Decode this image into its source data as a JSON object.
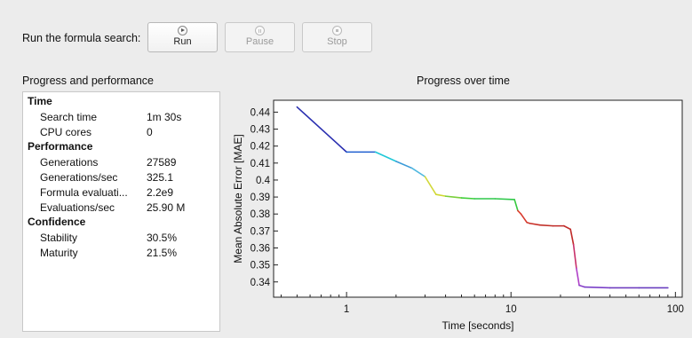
{
  "toolbar": {
    "label": "Run the formula search:",
    "buttons": [
      {
        "label": "Run",
        "icon": "play-icon",
        "enabled": true
      },
      {
        "label": "Pause",
        "icon": "pause-icon",
        "enabled": false
      },
      {
        "label": "Stop",
        "icon": "stop-icon",
        "enabled": false
      }
    ]
  },
  "progress_panel": {
    "title": "Progress and performance",
    "groups": [
      {
        "heading": "Time",
        "rows": [
          {
            "label": "Search time",
            "value": "1m 30s"
          },
          {
            "label": "CPU cores",
            "value": "0"
          }
        ]
      },
      {
        "heading": "Performance",
        "rows": [
          {
            "label": "Generations",
            "value": "27589"
          },
          {
            "label": "Generations/sec",
            "value": "325.1"
          },
          {
            "label": "Formula evaluati...",
            "value": "2.2e9"
          },
          {
            "label": "Evaluations/sec",
            "value": "25.90 M"
          }
        ]
      },
      {
        "heading": "Confidence",
        "rows": [
          {
            "label": "Stability",
            "value": "30.5%"
          },
          {
            "label": "Maturity",
            "value": "21.5%"
          }
        ]
      }
    ]
  },
  "chart_panel": {
    "title": "Progress over time"
  },
  "chart_data": {
    "type": "line",
    "title": "Progress over time",
    "xlabel": "Time [seconds]",
    "ylabel": "Mean Absolute Error [MAE]",
    "xscale": "log",
    "xlim": [
      0.36,
      110
    ],
    "ylim": [
      0.331,
      0.447
    ],
    "xticks": [
      1,
      10,
      100
    ],
    "xtick_labels": [
      "1",
      "10",
      "100"
    ],
    "yticks": [
      0.34,
      0.35,
      0.36,
      0.37,
      0.38,
      0.39,
      0.4,
      0.41,
      0.42,
      0.43,
      0.44
    ],
    "ytick_labels": [
      "0.34",
      "0.35",
      "0.36",
      "0.37",
      "0.38",
      "0.39",
      "0.4",
      "0.41",
      "0.42",
      "0.43",
      "0.44"
    ],
    "grid": false,
    "line_color_map": "rainbow (blue → red → purple over time)",
    "x": [
      0.5,
      1.0,
      1.5,
      2.0,
      2.5,
      3.0,
      3.5,
      4.0,
      5.0,
      6.0,
      8.0,
      10.5,
      11.0,
      11.5,
      12.5,
      13.0,
      15.0,
      18.0,
      21.0,
      23.0,
      24.0,
      25.0,
      26.0,
      28.0,
      40.0,
      60.0,
      90.0
    ],
    "y": [
      0.443,
      0.4165,
      0.4165,
      0.411,
      0.407,
      0.402,
      0.3915,
      0.3905,
      0.3895,
      0.389,
      0.389,
      0.3885,
      0.382,
      0.38,
      0.375,
      0.3745,
      0.3735,
      0.373,
      0.373,
      0.371,
      0.362,
      0.348,
      0.338,
      0.337,
      0.3365,
      0.3365,
      0.3365
    ],
    "colors": [
      "#2a2fb0",
      "#1f5fd0",
      "#21c8d8",
      "#3a9ad8",
      "#4fb8e0",
      "#d2d83a",
      "#cfd830",
      "#7acf3a",
      "#3fcf3a",
      "#2ec84a",
      "#2ec84a",
      "#35c83e",
      "#e04030",
      "#d83a2e",
      "#d03a2e",
      "#c83028",
      "#c03028",
      "#c02a28",
      "#c02a28",
      "#c02a28",
      "#c8306a",
      "#b040c8",
      "#8a40c8",
      "#7a40c8",
      "#7040c0",
      "#6a40c0",
      "#6040c0"
    ]
  }
}
